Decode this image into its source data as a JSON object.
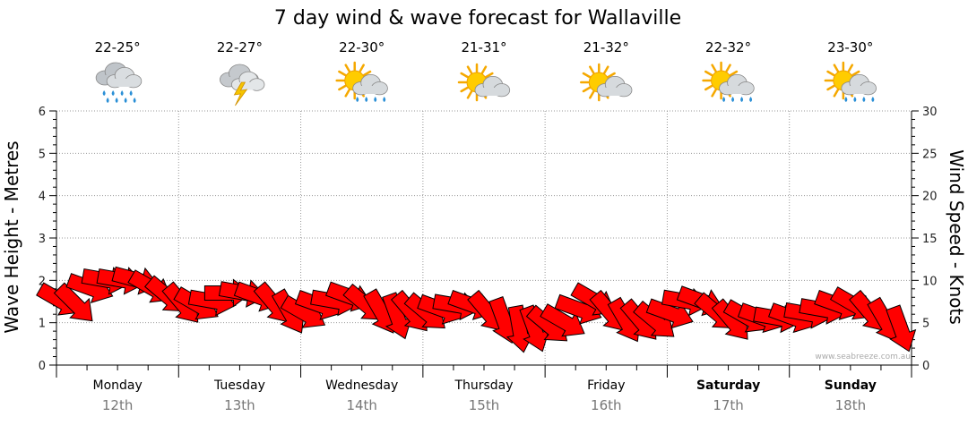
{
  "chart_data": {
    "type": "line",
    "title": "7 day wind & wave forecast for Wallaville",
    "ylabel_left": "Wave Height - Metres",
    "ylabel_right": "Wind Speed - Knots",
    "ylim_left": [
      0,
      6
    ],
    "ylim_right": [
      0,
      30
    ],
    "yticks_left": [
      "0",
      "1",
      "2",
      "3",
      "4",
      "5",
      "6"
    ],
    "yticks_right": [
      "0",
      "5",
      "10",
      "15",
      "20",
      "25",
      "30"
    ],
    "grid": true,
    "watermark": "www.seabreeze.com.au",
    "days": [
      {
        "day": "Monday",
        "date": "12th",
        "temp": "22-25°",
        "icon": "heavy-rain-cloud-icon",
        "bold": false
      },
      {
        "day": "Tuesday",
        "date": "13th",
        "temp": "22-27°",
        "icon": "thunderstorm-cloud-icon",
        "bold": false
      },
      {
        "day": "Wednesday",
        "date": "14th",
        "temp": "22-30°",
        "icon": "sun-cloud-rain-icon",
        "bold": false
      },
      {
        "day": "Thursday",
        "date": "15th",
        "temp": "21-31°",
        "icon": "sun-cloud-icon",
        "bold": false
      },
      {
        "day": "Friday",
        "date": "16th",
        "temp": "21-32°",
        "icon": "sun-cloud-icon",
        "bold": false
      },
      {
        "day": "Saturday",
        "date": "17th",
        "temp": "22-32°",
        "icon": "sun-cloud-rain-icon",
        "bold": true
      },
      {
        "day": "Sunday",
        "date": "18th",
        "temp": "23-30°",
        "icon": "sun-cloud-rain-icon",
        "bold": true
      }
    ],
    "wind_color": "#ff0000",
    "wind_series": {
      "name": "",
      "x_hours": [
        0,
        3,
        6,
        9,
        12,
        15,
        18,
        21,
        24,
        27,
        30,
        33,
        36,
        39,
        42,
        45,
        48,
        51,
        54,
        57,
        60,
        63,
        66,
        69,
        72,
        75,
        78,
        81,
        84,
        87,
        90,
        93,
        96,
        99,
        102,
        105,
        108,
        111,
        114,
        117,
        120,
        123,
        126,
        129,
        132,
        135,
        138,
        141,
        144,
        147,
        150,
        153,
        156,
        159,
        162,
        165
      ],
      "speed_knots": [
        7.5,
        7,
        9,
        10,
        10,
        10,
        9,
        8,
        7,
        7,
        7.5,
        8.5,
        8.5,
        8,
        7,
        6,
        6,
        7,
        7.5,
        8,
        7,
        6,
        5.5,
        6,
        6,
        6.5,
        7,
        7,
        6,
        5,
        4,
        4,
        4.5,
        5,
        6.5,
        7.5,
        6,
        5,
        5,
        5,
        6,
        7.5,
        7.5,
        6,
        5,
        5.5,
        5.5,
        5.5,
        5.5,
        6,
        6.5,
        7,
        7,
        6,
        5,
        4
      ],
      "direction_deg": [
        120,
        135,
        110,
        100,
        100,
        105,
        120,
        130,
        140,
        120,
        100,
        90,
        100,
        110,
        140,
        150,
        120,
        110,
        100,
        110,
        130,
        150,
        160,
        140,
        130,
        110,
        100,
        110,
        140,
        160,
        170,
        160,
        130,
        120,
        110,
        120,
        140,
        150,
        140,
        130,
        110,
        100,
        110,
        130,
        140,
        120,
        110,
        100,
        110,
        100,
        100,
        110,
        120,
        140,
        150,
        160
      ]
    }
  }
}
